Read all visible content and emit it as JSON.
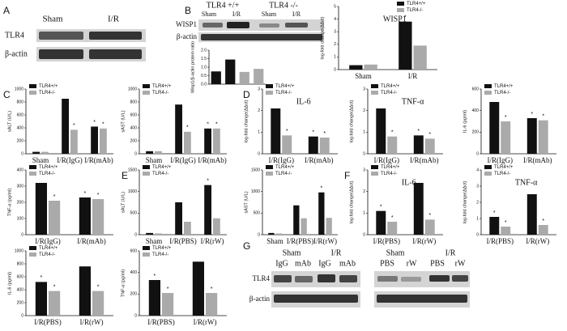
{
  "panel_letters": [
    "A",
    "B",
    "C",
    "D",
    "E",
    "F",
    "G"
  ],
  "blot_A": {
    "lanes": [
      "Sham",
      "I/R"
    ],
    "rows": [
      "TLR4",
      "β-actin"
    ]
  },
  "blot_B": {
    "groups": [
      "TLR4 +/+",
      "TLR4 -/-"
    ],
    "lanes": [
      "Sham",
      "I/R",
      "Sham",
      "I/R"
    ],
    "rows": [
      "WISP1",
      "β-actin"
    ]
  },
  "blot_G": {
    "groups": [
      "Sham",
      "I/R",
      "Sham",
      "I/R"
    ],
    "lanes": [
      "IgG",
      "mAb",
      "IgG",
      "mAb",
      "PBS",
      "rW",
      "PBS",
      "rW"
    ],
    "rows": [
      "TLR4",
      "β-actin"
    ]
  },
  "chart_data": [
    {
      "type": "bar",
      "ylabel": "Wisp1/β-actin protein ratio",
      "categories": [
        null,
        null,
        null,
        null
      ],
      "values": [
        0.75,
        1.45,
        0.72,
        0.9
      ],
      "colors": [
        "#111111",
        "#111111",
        "#aaaaaa",
        "#aaaaaa"
      ],
      "ylim": [
        0,
        2
      ],
      "yticks": [
        {
          "value": 0,
          "label": "0.0"
        },
        {
          "value": 0.5,
          "label": "0.5"
        },
        {
          "value": 1,
          "label": "1.0"
        },
        {
          "value": 1.5,
          "label": "1.5"
        },
        {
          "value": 2,
          "label": "2.0"
        }
      ]
    },
    {
      "type": "bar",
      "title": "WISP1",
      "ylabel": "log-fold change(ΔΔct)",
      "categories": [
        "Sham",
        "I/R"
      ],
      "legend": "upper right",
      "series": [
        {
          "name": "TLR4+/+",
          "color": "#111111",
          "values": [
            0.35,
            3.8
          ],
          "stars": [
            null,
            "*"
          ]
        },
        {
          "name": "TLR4-/-",
          "color": "#aaaaaa",
          "values": [
            0.4,
            1.9
          ],
          "stars": [
            null,
            null
          ]
        }
      ],
      "ylim": [
        0,
        5
      ],
      "yticks": [
        0,
        1,
        2,
        3,
        4,
        5
      ]
    },
    {
      "type": "bar",
      "ylabel": "sALT (U/L)",
      "categories": [
        "Sham",
        "I/R(IgG)",
        "I/R(mAb)"
      ],
      "legend": "upper left",
      "series": [
        {
          "name": "TLR4+/+",
          "color": "#111111",
          "values": [
            30,
            850,
            420
          ],
          "stars": [
            null,
            null,
            "*"
          ]
        },
        {
          "name": "TLR4-/-",
          "color": "#aaaaaa",
          "values": [
            30,
            370,
            390
          ],
          "stars": [
            null,
            "*",
            "*"
          ]
        }
      ],
      "ylim": [
        0,
        1000
      ],
      "yticks": [
        0,
        200,
        400,
        600,
        800,
        1000
      ]
    },
    {
      "type": "bar",
      "ylabel": "sAST (U/L)",
      "categories": [
        "Sham",
        "I/R(IgG)",
        "I/R(mAb)"
      ],
      "legend": "upper left",
      "series": [
        {
          "name": "TLR4+/+",
          "color": "#111111",
          "values": [
            40,
            760,
            390
          ],
          "stars": [
            null,
            null,
            "*"
          ]
        },
        {
          "name": "TLR4-/-",
          "color": "#aaaaaa",
          "values": [
            40,
            340,
            390
          ],
          "stars": [
            null,
            "*",
            "*"
          ]
        }
      ],
      "ylim": [
        0,
        1000
      ],
      "yticks": [
        0,
        200,
        400,
        600,
        800,
        1000
      ]
    },
    {
      "type": "bar",
      "title": "IL-6",
      "ylabel": "log-fold change(ΔΔct)",
      "categories": [
        "I/R(IgG)",
        "I/R(mAb)"
      ],
      "legend": "upper left",
      "series": [
        {
          "name": "TLR4+/+",
          "color": "#111111",
          "values": [
            2.1,
            0.8
          ],
          "stars": [
            null,
            "*"
          ]
        },
        {
          "name": "TLR4-/-",
          "color": "#aaaaaa",
          "values": [
            0.85,
            0.75
          ],
          "stars": [
            "*",
            "*"
          ]
        }
      ],
      "ylim": [
        0,
        3
      ],
      "yticks": [
        0,
        1,
        2,
        3
      ]
    },
    {
      "type": "bar",
      "title": "TNF-α",
      "ylabel": "log-fold change(ΔΔct)",
      "categories": [
        "I/R(IgG)",
        "I/R(mAb)"
      ],
      "legend": "upper left",
      "series": [
        {
          "name": "TLR4+/+",
          "color": "#111111",
          "values": [
            2.1,
            0.85
          ],
          "stars": [
            null,
            "*"
          ]
        },
        {
          "name": "TLR4-/-",
          "color": "#aaaaaa",
          "values": [
            0.8,
            0.7
          ],
          "stars": [
            "*",
            "*"
          ]
        }
      ],
      "ylim": [
        0,
        3
      ],
      "yticks": [
        0,
        1,
        2,
        3
      ]
    },
    {
      "type": "bar",
      "ylabel": "IL-6 (pg/ml)",
      "categories": [
        "I/R(IgG)",
        "I/R(mAb)"
      ],
      "legend": "upper left",
      "series": [
        {
          "name": "TLR4+/+",
          "color": "#111111",
          "values": [
            480,
            330
          ],
          "stars": [
            null,
            "*"
          ]
        },
        {
          "name": "TLR4-/-",
          "color": "#aaaaaa",
          "values": [
            300,
            310
          ],
          "stars": [
            "*",
            "*"
          ]
        }
      ],
      "ylim": [
        0,
        600
      ],
      "yticks": [
        0,
        200,
        400,
        600
      ]
    },
    {
      "type": "bar",
      "ylabel": "TNF-α (pg/ml)",
      "categories": [
        "I/R(IgG)",
        "I/R(mAb)"
      ],
      "legend": "upper left",
      "series": [
        {
          "name": "TLR4+/+",
          "color": "#111111",
          "values": [
            320,
            230
          ],
          "stars": [
            null,
            "*"
          ]
        },
        {
          "name": "TLR4-/-",
          "color": "#aaaaaa",
          "values": [
            210,
            220
          ],
          "stars": [
            "*",
            "*"
          ]
        }
      ],
      "ylim": [
        0,
        400
      ],
      "yticks": [
        0,
        100,
        200,
        300,
        400
      ]
    },
    {
      "type": "bar",
      "ylabel": "sALT (U/L)",
      "categories": [
        "Sham",
        "I/R(PBS)",
        "I/R(rW)"
      ],
      "legend": "upper left",
      "series": [
        {
          "name": "TLR4+/+",
          "color": "#111111",
          "values": [
            40,
            750,
            1150
          ],
          "stars": [
            null,
            null,
            "*"
          ]
        },
        {
          "name": "TLR4-/-",
          "color": "#aaaaaa",
          "values": [
            30,
            300,
            380
          ],
          "stars": [
            null,
            null,
            null
          ]
        }
      ],
      "ylim": [
        0,
        1500
      ],
      "yticks": [
        0,
        500,
        1000,
        1500
      ]
    },
    {
      "type": "bar",
      "ylabel": "sAST (U/L)",
      "categories": [
        "Sham",
        "I/R(PBS)",
        "I/R(rW)"
      ],
      "legend": "upper left",
      "series": [
        {
          "name": "TLR4+/+",
          "color": "#111111",
          "values": [
            40,
            680,
            980
          ],
          "stars": [
            null,
            null,
            "*"
          ]
        },
        {
          "name": "TLR4-/-",
          "color": "#aaaaaa",
          "values": [
            30,
            380,
            390
          ],
          "stars": [
            null,
            null,
            null
          ]
        }
      ],
      "ylim": [
        0,
        1500
      ],
      "yticks": [
        0,
        500,
        1000,
        1500
      ]
    },
    {
      "type": "bar",
      "title": "IL-6",
      "ylabel": "log-fold change(ΔΔct)",
      "categories": [
        "I/R(PBS)",
        "I/R(rW)"
      ],
      "legend": "upper left",
      "series": [
        {
          "name": "TLR4+/+",
          "color": "#111111",
          "values": [
            1.1,
            2.4
          ],
          "stars": [
            "*",
            null
          ]
        },
        {
          "name": "TLR4-/-",
          "color": "#aaaaaa",
          "values": [
            0.6,
            0.7
          ],
          "stars": [
            "*",
            "*"
          ]
        }
      ],
      "ylim": [
        0,
        3
      ],
      "yticks": [
        0,
        1,
        2,
        3
      ]
    },
    {
      "type": "bar",
      "title": "TNF-α",
      "ylabel": "log-fold change(ΔΔct)",
      "categories": [
        "I/R(PBS)",
        "I/R(rW)"
      ],
      "legend": "upper left",
      "series": [
        {
          "name": "TLR4+/+",
          "color": "#111111",
          "values": [
            1.1,
            2.5
          ],
          "stars": [
            "*",
            null
          ]
        },
        {
          "name": "TLR4-/-",
          "color": "#aaaaaa",
          "values": [
            0.5,
            0.6
          ],
          "stars": [
            "*",
            "*"
          ]
        }
      ],
      "ylim": [
        0,
        4
      ],
      "yticks": [
        0,
        1,
        2,
        3,
        4
      ]
    },
    {
      "type": "bar",
      "ylabel": "IL-6 (pg/ml)",
      "categories": [
        "I/R(PBS)",
        "I/R(rW)"
      ],
      "legend": "upper left",
      "series": [
        {
          "name": "TLR4+/+",
          "color": "#111111",
          "values": [
            520,
            760
          ],
          "stars": [
            "*",
            null
          ]
        },
        {
          "name": "TLR4-/-",
          "color": "#aaaaaa",
          "values": [
            380,
            380
          ],
          "stars": [
            "*",
            "*"
          ]
        }
      ],
      "ylim": [
        0,
        1000
      ],
      "yticks": [
        0,
        200,
        400,
        600,
        800,
        1000
      ]
    },
    {
      "type": "bar",
      "ylabel": "TNF-α (pg/ml)",
      "categories": [
        "I/R(PBS)",
        "I/R(rW)"
      ],
      "legend": "upper left",
      "series": [
        {
          "name": "TLR4+/+",
          "color": "#111111",
          "values": [
            330,
            500
          ],
          "stars": [
            "*",
            null
          ]
        },
        {
          "name": "TLR4-/-",
          "color": "#aaaaaa",
          "values": [
            210,
            210
          ],
          "stars": [
            "*",
            "*"
          ]
        }
      ],
      "ylim": [
        0,
        600
      ],
      "yticks": [
        0,
        200,
        400,
        600
      ]
    }
  ]
}
